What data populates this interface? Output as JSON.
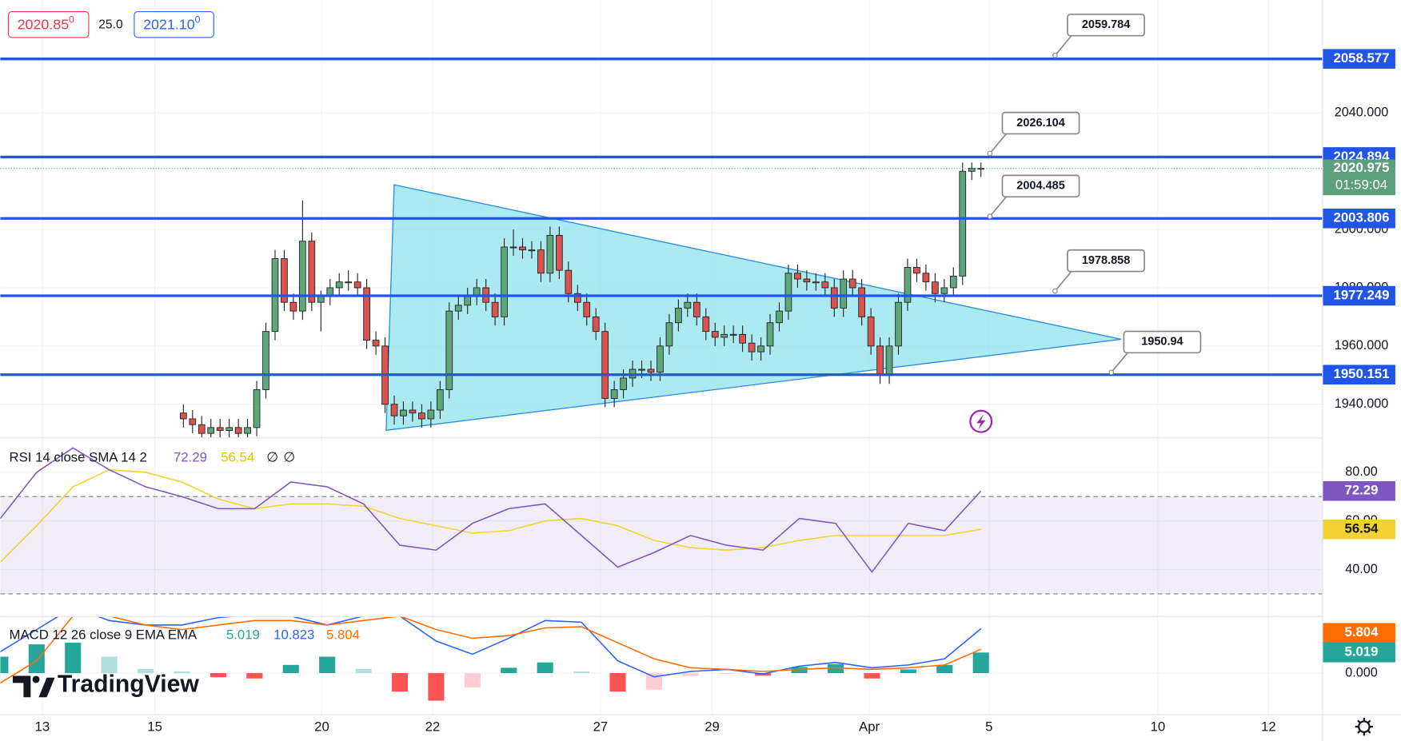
{
  "header": {
    "bid": "2020.85",
    "bid_frac": "0",
    "spread": "25.0",
    "ask": "2021.10",
    "ask_frac": "0"
  },
  "logo": "TradingView",
  "chart_data": [
    {
      "type": "candlestick",
      "up_color": "#5ea77a",
      "down_color": "#d9534f",
      "ylim": [
        1928.6,
        2078.8
      ],
      "yticks": [
        {
          "value": 2040,
          "label": "2040.000"
        },
        {
          "value": 2000,
          "label": "2000.000"
        },
        {
          "value": 1980,
          "label": "1980.000"
        },
        {
          "value": 1960,
          "label": "1960.000"
        },
        {
          "value": 1940,
          "label": "1940.000"
        }
      ],
      "x_labels": [
        "13",
        "15",
        "20",
        "22",
        "27",
        "29",
        "Apr",
        "5",
        "10",
        "12"
      ],
      "candles": [
        [
          1937,
          1940,
          1932,
          1935
        ],
        [
          1935,
          1938,
          1930,
          1933
        ],
        [
          1933,
          1936,
          1927,
          1930
        ],
        [
          1930,
          1935,
          1927,
          1932
        ],
        [
          1932,
          1935,
          1928,
          1931
        ],
        [
          1931,
          1935,
          1928,
          1932
        ],
        [
          1932,
          1935,
          1927,
          1930
        ],
        [
          1930,
          1935,
          1927,
          1932
        ],
        [
          1932,
          1948,
          1929,
          1945
        ],
        [
          1945,
          1968,
          1942,
          1965
        ],
        [
          1965,
          1993,
          1962,
          1990
        ],
        [
          1990,
          1993,
          1972,
          1975
        ],
        [
          1975,
          1978,
          1969,
          1972
        ],
        [
          1972,
          2010,
          1969,
          1996
        ],
        [
          1996,
          1999,
          1972,
          1975
        ],
        [
          1975,
          1979,
          1965,
          1977
        ],
        [
          1977,
          1983,
          1974,
          1980
        ],
        [
          1980,
          1985,
          1977,
          1982
        ],
        [
          1982,
          1986,
          1979,
          1982
        ],
        [
          1982,
          1985,
          1977,
          1980
        ],
        [
          1980,
          1983,
          1959,
          1962
        ],
        [
          1962,
          1965,
          1957,
          1960
        ],
        [
          1960,
          1963,
          1937,
          1940
        ],
        [
          1940,
          1943,
          1933,
          1936
        ],
        [
          1936,
          1941,
          1933,
          1938
        ],
        [
          1938,
          1941,
          1934,
          1937
        ],
        [
          1937,
          1940,
          1932,
          1935
        ],
        [
          1935,
          1941,
          1932,
          1938
        ],
        [
          1938,
          1948,
          1935,
          1945
        ],
        [
          1945,
          1975,
          1942,
          1972
        ],
        [
          1972,
          1977,
          1969,
          1974
        ],
        [
          1974,
          1980,
          1971,
          1977
        ],
        [
          1977,
          1983,
          1974,
          1980
        ],
        [
          1980,
          1983,
          1972,
          1975
        ],
        [
          1975,
          1978,
          1967,
          1970
        ],
        [
          1970,
          1997,
          1967,
          1994
        ],
        [
          1994,
          2000,
          1991,
          1994
        ],
        [
          1994,
          1997,
          1990,
          1993
        ],
        [
          1993,
          1996,
          1990,
          1993
        ],
        [
          1993,
          1996,
          1982,
          1985
        ],
        [
          1985,
          2001,
          1982,
          1998
        ],
        [
          1998,
          2001,
          1983,
          1986
        ],
        [
          1986,
          1989,
          1975,
          1978
        ],
        [
          1978,
          1981,
          1972,
          1975
        ],
        [
          1975,
          1978,
          1967,
          1970
        ],
        [
          1970,
          1973,
          1962,
          1965
        ],
        [
          1965,
          1968,
          1939,
          1942
        ],
        [
          1942,
          1948,
          1939,
          1945
        ],
        [
          1945,
          1952,
          1942,
          1949
        ],
        [
          1949,
          1955,
          1946,
          1952
        ],
        [
          1952,
          1955,
          1949,
          1952
        ],
        [
          1952,
          1955,
          1948,
          1951
        ],
        [
          1951,
          1963,
          1948,
          1960
        ],
        [
          1960,
          1971,
          1957,
          1968
        ],
        [
          1968,
          1976,
          1965,
          1973
        ],
        [
          1973,
          1978,
          1970,
          1975
        ],
        [
          1975,
          1978,
          1967,
          1970
        ],
        [
          1970,
          1973,
          1962,
          1965
        ],
        [
          1965,
          1968,
          1960,
          1963
        ],
        [
          1963,
          1967,
          1960,
          1964
        ],
        [
          1964,
          1967,
          1961,
          1964
        ],
        [
          1964,
          1967,
          1958,
          1961
        ],
        [
          1961,
          1964,
          1955,
          1958
        ],
        [
          1958,
          1963,
          1955,
          1960
        ],
        [
          1960,
          1971,
          1957,
          1968
        ],
        [
          1968,
          1975,
          1965,
          1972
        ],
        [
          1972,
          1988,
          1969,
          1985
        ],
        [
          1985,
          1988,
          1980,
          1983
        ],
        [
          1983,
          1986,
          1979,
          1982
        ],
        [
          1982,
          1985,
          1979,
          1982
        ],
        [
          1982,
          1985,
          1977,
          1980
        ],
        [
          1980,
          1983,
          1970,
          1973
        ],
        [
          1973,
          1986,
          1970,
          1983
        ],
        [
          1983,
          1986,
          1977,
          1980
        ],
        [
          1980,
          1983,
          1967,
          1970
        ],
        [
          1970,
          1973,
          1957,
          1960
        ],
        [
          1960,
          1963,
          1947,
          1950
        ],
        [
          1950,
          1963,
          1947,
          1960
        ],
        [
          1960,
          1978,
          1957,
          1975
        ],
        [
          1975,
          1990,
          1972,
          1987
        ],
        [
          1987,
          1990,
          1982,
          1985
        ],
        [
          1985,
          1988,
          1979,
          1982
        ],
        [
          1982,
          1985,
          1975,
          1978
        ],
        [
          1978,
          1983,
          1975,
          1980
        ],
        [
          1980,
          1987,
          1977,
          1984
        ],
        [
          1984,
          2023,
          1981,
          2020
        ],
        [
          2020,
          2023,
          2017,
          2021
        ],
        [
          2021,
          2023,
          2018,
          2020.975
        ]
      ],
      "levels": [
        2058.577,
        2024.894,
        2003.806,
        1977.249,
        1950.151
      ],
      "level_color": "#2155e8",
      "callouts": [
        2059.784,
        2026.104,
        2004.485,
        1978.858,
        1950.94
      ],
      "last_price": 2020.975,
      "last_color": "#5b9f7c",
      "countdown": "01:59:04"
    },
    {
      "type": "line",
      "title": "RSI 14 close SMA 14 2",
      "na_labels": [
        "∅",
        "∅"
      ],
      "ylim": [
        20.9,
        94.3
      ],
      "yticks": [
        {
          "value": 80,
          "label": "80.00"
        },
        {
          "value": 60,
          "label": "60.00"
        },
        {
          "value": 40,
          "label": "40.00"
        }
      ],
      "band": [
        30,
        70
      ],
      "series": [
        {
          "name": "RSI",
          "color": "#7e57c2",
          "values": [
            61,
            80,
            90,
            81,
            74,
            70,
            65,
            65,
            76,
            74,
            67,
            50,
            48,
            59,
            65,
            67,
            54,
            41,
            47,
            54,
            50,
            48,
            61,
            59,
            39,
            59,
            56,
            72.29
          ]
        },
        {
          "name": "SMA",
          "color": "#f2d230",
          "values": [
            43,
            58,
            74,
            81,
            80,
            76,
            69,
            65,
            67,
            67,
            66,
            61,
            58,
            55,
            56,
            60,
            61,
            58,
            52,
            49,
            48,
            49,
            52,
            54,
            54,
            54,
            54,
            56.54
          ]
        }
      ]
    },
    {
      "type": "macd",
      "title": "MACD 12 26 close 9 EMA EMA",
      "ylim": [
        -10,
        13.9
      ],
      "yticks": [
        {
          "value": 0,
          "label": "0.000"
        }
      ],
      "histogram": {
        "name": "Histogram",
        "colors": [
          "#26a69a",
          "#b2dfdb",
          "#ff5252",
          "#ffcdd2"
        ],
        "values": [
          4,
          7,
          7.4,
          4,
          1,
          0.4,
          -1,
          -1.3,
          2,
          4,
          1,
          -4.5,
          -6.7,
          -3.5,
          1.3,
          2.6,
          0.4,
          -4.5,
          -4,
          -0.7,
          -0.2,
          -0.6,
          1.5,
          2.2,
          -1.3,
          0.9,
          2,
          5.019
        ]
      },
      "series": [
        {
          "name": "MACD",
          "color": "#2962ff",
          "values": [
            5.2,
            10.6,
            16,
            12.8,
            11.7,
            11.7,
            13.5,
            14.3,
            13.9,
            11.7,
            13.9,
            13.9,
            7.8,
            4.6,
            8.5,
            12.8,
            12.4,
            3,
            -0.9,
            0.4,
            0.9,
            -0.2,
            1.7,
            2.6,
            1.3,
            2,
            3.5,
            10.823
          ]
        },
        {
          "name": "Signal",
          "color": "#ff6d00",
          "values": [
            -2.4,
            3,
            13.9,
            13.9,
            11.7,
            10.6,
            11.7,
            12.8,
            12.8,
            11.7,
            12.8,
            13.9,
            10.6,
            8.5,
            9.1,
            11,
            11.3,
            7.4,
            3.5,
            1.3,
            0.9,
            0.4,
            0.9,
            1.3,
            0.9,
            1.3,
            2,
            5.804
          ]
        }
      ]
    }
  ]
}
